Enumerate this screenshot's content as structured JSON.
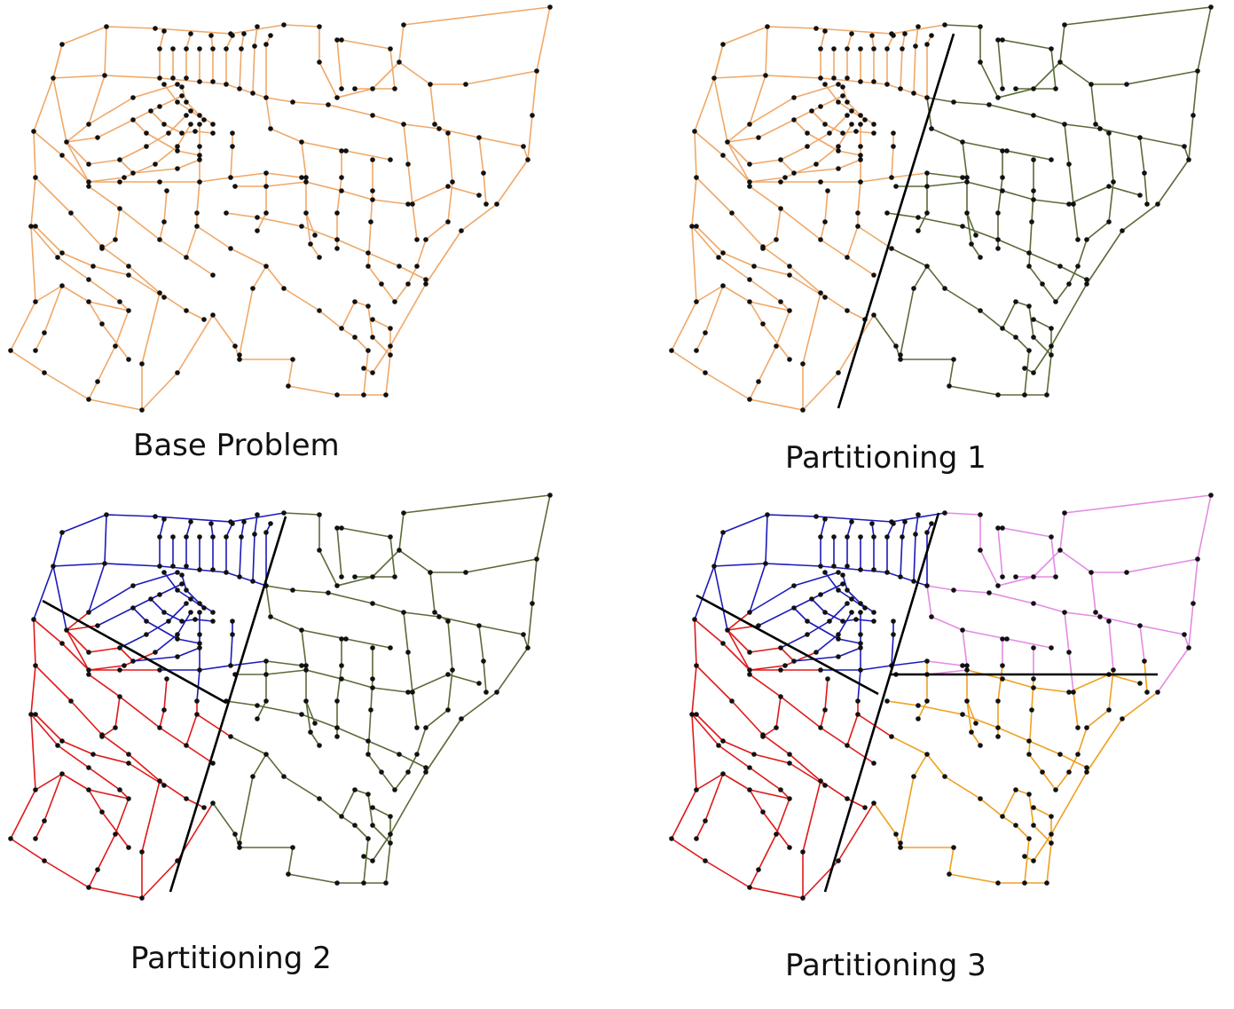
{
  "panels": [
    {
      "caption": "Base Problem"
    },
    {
      "caption": "Partitioning 1"
    },
    {
      "caption": "Partitioning 2"
    },
    {
      "caption": "Partitioning 3"
    }
  ],
  "colors": {
    "orange": "#f0a868",
    "green": "#5a6b38",
    "blue": "#1a1ab8",
    "red": "#e01818",
    "violet": "#e48be4",
    "dark_orange": "#f0a020",
    "node": "#111111",
    "cut": "#000000"
  },
  "legend_icons": [
    "road-network-icon"
  ]
}
